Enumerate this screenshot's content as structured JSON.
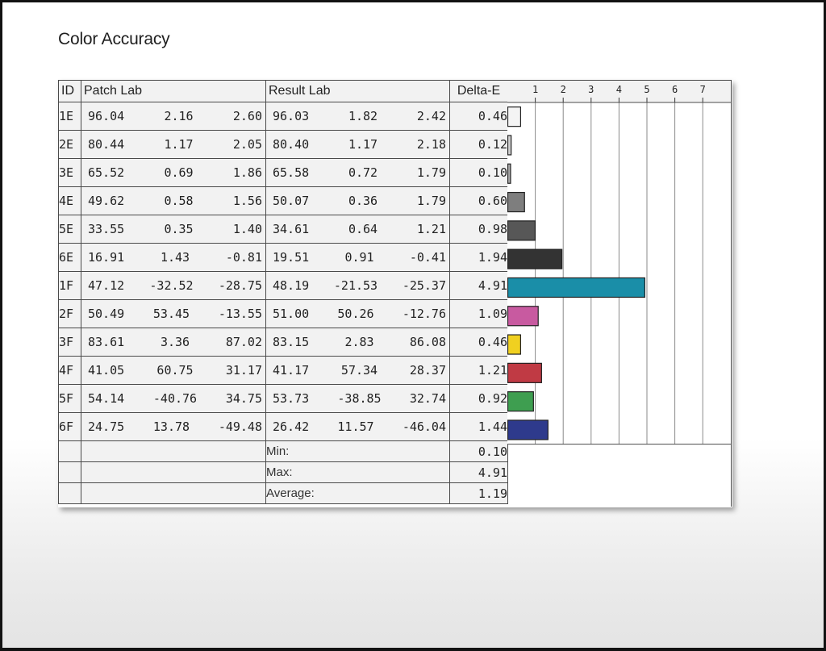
{
  "title": "Color Accuracy",
  "headers": {
    "id": "ID",
    "patch": "Patch Lab",
    "result": "Result Lab",
    "delta": "Delta-E"
  },
  "rows": [
    {
      "id": "1E",
      "patch": [
        "96.04",
        "2.16",
        "2.60"
      ],
      "result": [
        "96.03",
        "1.82",
        "2.42"
      ],
      "delta": "0.46",
      "color": "#f4f4f4"
    },
    {
      "id": "2E",
      "patch": [
        "80.44",
        "1.17",
        "2.05"
      ],
      "result": [
        "80.40",
        "1.17",
        "2.18"
      ],
      "delta": "0.12",
      "color": "#cfcfcf"
    },
    {
      "id": "3E",
      "patch": [
        "65.52",
        "0.69",
        "1.86"
      ],
      "result": [
        "65.58",
        "0.72",
        "1.79"
      ],
      "delta": "0.10",
      "color": "#a8a8a8"
    },
    {
      "id": "4E",
      "patch": [
        "49.62",
        "0.58",
        "1.56"
      ],
      "result": [
        "50.07",
        "0.36",
        "1.79"
      ],
      "delta": "0.60",
      "color": "#7e7e7e"
    },
    {
      "id": "5E",
      "patch": [
        "33.55",
        "0.35",
        "1.40"
      ],
      "result": [
        "34.61",
        "0.64",
        "1.21"
      ],
      "delta": "0.98",
      "color": "#575757"
    },
    {
      "id": "6E",
      "patch": [
        "16.91",
        "1.43",
        "-0.81"
      ],
      "result": [
        "19.51",
        "0.91",
        "-0.41"
      ],
      "delta": "1.94",
      "color": "#333333"
    },
    {
      "id": "1F",
      "patch": [
        "47.12",
        "-32.52",
        "-28.75"
      ],
      "result": [
        "48.19",
        "-21.53",
        "-25.37"
      ],
      "delta": "4.91",
      "color": "#1a8ea8"
    },
    {
      "id": "2F",
      "patch": [
        "50.49",
        "53.45",
        "-13.55"
      ],
      "result": [
        "51.00",
        "50.26",
        "-12.76"
      ],
      "delta": "1.09",
      "color": "#c85aa0"
    },
    {
      "id": "3F",
      "patch": [
        "83.61",
        "3.36",
        "87.02"
      ],
      "result": [
        "83.15",
        "2.83",
        "86.08"
      ],
      "delta": "0.46",
      "color": "#f0d020"
    },
    {
      "id": "4F",
      "patch": [
        "41.05",
        "60.75",
        "31.17"
      ],
      "result": [
        "41.17",
        "57.34",
        "28.37"
      ],
      "delta": "1.21",
      "color": "#c03a44"
    },
    {
      "id": "5F",
      "patch": [
        "54.14",
        "-40.76",
        "34.75"
      ],
      "result": [
        "53.73",
        "-38.85",
        "32.74"
      ],
      "delta": "0.92",
      "color": "#3e9e50"
    },
    {
      "id": "6F",
      "patch": [
        "24.75",
        "13.78",
        "-49.48"
      ],
      "result": [
        "26.42",
        "11.57",
        "-46.04"
      ],
      "delta": "1.44",
      "color": "#2e3a8c"
    }
  ],
  "summary": [
    {
      "label": "Min:",
      "value": "0.10"
    },
    {
      "label": "Max:",
      "value": "4.91"
    },
    {
      "label": "Average:",
      "value": "1.19"
    }
  ],
  "chart_data": {
    "type": "bar",
    "orientation": "horizontal",
    "categories": [
      "1E",
      "2E",
      "3E",
      "4E",
      "5E",
      "6E",
      "1F",
      "2F",
      "3F",
      "4F",
      "5F",
      "6F"
    ],
    "values": [
      0.46,
      0.12,
      0.1,
      0.6,
      0.98,
      1.94,
      4.91,
      1.09,
      0.46,
      1.21,
      0.92,
      1.44
    ],
    "colors": [
      "#f4f4f4",
      "#cfcfcf",
      "#a8a8a8",
      "#7e7e7e",
      "#575757",
      "#333333",
      "#1a8ea8",
      "#c85aa0",
      "#f0d020",
      "#c03a44",
      "#3e9e50",
      "#2e3a8c"
    ],
    "xticks": [
      "1",
      "2",
      "3",
      "4",
      "5",
      "6",
      "7"
    ],
    "xlim": [
      0,
      8
    ],
    "grid": true,
    "title": "",
    "xlabel": "",
    "ylabel": ""
  }
}
